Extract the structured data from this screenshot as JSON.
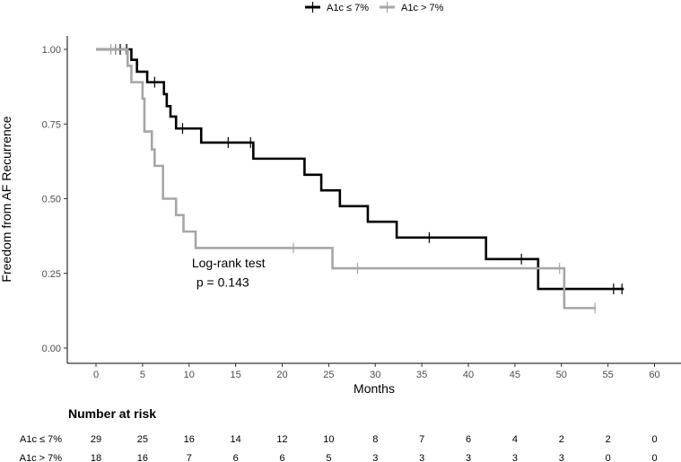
{
  "chart_data": {
    "type": "line",
    "subtype": "kaplan-meier",
    "xlabel": "Months",
    "ylabel": "Freedom from AF Recurrence",
    "xlim": [
      -3,
      62
    ],
    "ylim": [
      -0.05,
      1.05
    ],
    "x_ticks": [
      0,
      5,
      10,
      15,
      20,
      25,
      30,
      35,
      40,
      45,
      50,
      55,
      60
    ],
    "y_ticks": [
      0.0,
      0.25,
      0.5,
      0.75,
      1.0
    ],
    "y_tick_labels": [
      "0.00",
      "0.25",
      "0.50",
      "0.75",
      "1.00"
    ],
    "legend_position": "top",
    "series": [
      {
        "name": "A1c ≤ 7%",
        "color": "#000000",
        "steps": [
          [
            0,
            1.0
          ],
          [
            3.8,
            0.965
          ],
          [
            4.4,
            0.925
          ],
          [
            5.5,
            0.89
          ],
          [
            7.3,
            0.85
          ],
          [
            7.6,
            0.81
          ],
          [
            8.0,
            0.775
          ],
          [
            8.6,
            0.735
          ],
          [
            11.3,
            0.688
          ],
          [
            16.9,
            0.634
          ],
          [
            22.4,
            0.58
          ],
          [
            24.2,
            0.528
          ],
          [
            26.2,
            0.475
          ],
          [
            29.2,
            0.423
          ],
          [
            32.3,
            0.37
          ],
          [
            41.9,
            0.298
          ],
          [
            47.5,
            0.198
          ],
          [
            56.7,
            0.198
          ]
        ],
        "censor": [
          [
            2.1,
            1.0
          ],
          [
            2.6,
            1.0
          ],
          [
            3.3,
            1.0
          ],
          [
            6.3,
            0.89
          ],
          [
            9.3,
            0.735
          ],
          [
            14.2,
            0.688
          ],
          [
            16.6,
            0.688
          ],
          [
            35.8,
            0.37
          ],
          [
            45.7,
            0.298
          ],
          [
            55.6,
            0.198
          ],
          [
            56.5,
            0.198
          ]
        ]
      },
      {
        "name": "A1c > 7%",
        "color": "#a6a6a6",
        "steps": [
          [
            0,
            1.0
          ],
          [
            3.4,
            0.945
          ],
          [
            3.8,
            0.89
          ],
          [
            5.0,
            0.835
          ],
          [
            5.2,
            0.725
          ],
          [
            6.0,
            0.665
          ],
          [
            6.3,
            0.61
          ],
          [
            7.2,
            0.5
          ],
          [
            8.6,
            0.445
          ],
          [
            9.4,
            0.39
          ],
          [
            10.7,
            0.335
          ],
          [
            25.4,
            0.267
          ],
          [
            50.3,
            0.134
          ],
          [
            53.7,
            0.134
          ]
        ],
        "censor": [
          [
            1.6,
            1.0
          ],
          [
            2.1,
            1.0
          ],
          [
            3.2,
            1.0
          ],
          [
            21.2,
            0.335
          ],
          [
            28.1,
            0.267
          ],
          [
            49.8,
            0.267
          ],
          [
            53.6,
            0.134
          ]
        ]
      }
    ],
    "annotation": {
      "line1": "Log-rank test",
      "line2": "p = 0.143",
      "x": 10.3,
      "y1": 0.27,
      "y2": 0.205
    },
    "risk_table": {
      "title": "Number at risk",
      "time_points": [
        0,
        5,
        10,
        15,
        20,
        25,
        30,
        35,
        40,
        45,
        50,
        55,
        60
      ],
      "rows": [
        {
          "label": "A1c ≤ 7%",
          "values": [
            29,
            25,
            16,
            14,
            12,
            10,
            8,
            7,
            6,
            4,
            2,
            2,
            0
          ]
        },
        {
          "label": "A1c > 7%",
          "values": [
            18,
            16,
            7,
            6,
            6,
            5,
            3,
            3,
            3,
            3,
            3,
            0,
            0
          ]
        }
      ]
    }
  }
}
